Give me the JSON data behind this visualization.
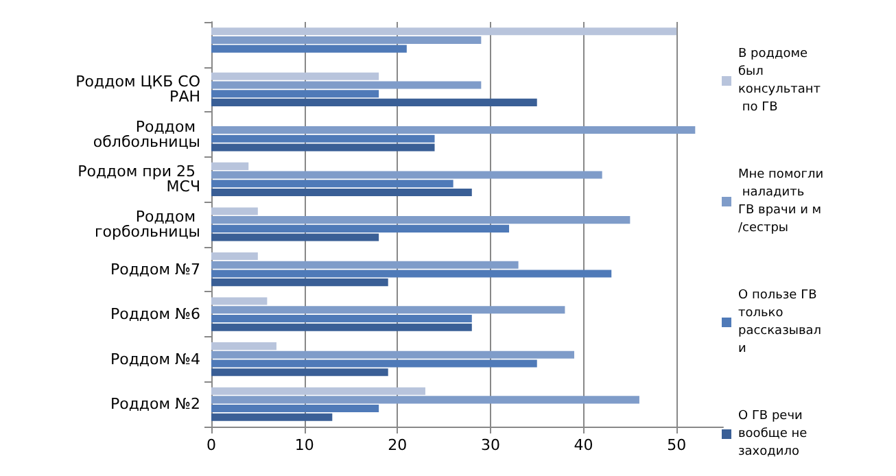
{
  "chart_data": {
    "type": "bar",
    "orientation": "horizontal",
    "categories": [
      null,
      "Роддом ЦКБ СО РАН",
      "Роддом облбольницы",
      "Роддом при 25 МСЧ",
      "Роддом горбольницы",
      "Роддом №7",
      "Роддом №6",
      "Роддом №4",
      "Роддом №2"
    ],
    "series": [
      {
        "name": "В роддоме  был консультант по ГВ",
        "color": "#b8c4dc",
        "values": [
          50,
          18,
          0,
          4,
          5,
          5,
          6,
          7,
          23
        ]
      },
      {
        "name": "Мне помогли наладить ГВ врачи и м/сестры",
        "color": "#7f9cc9",
        "values": [
          29,
          29,
          52,
          42,
          45,
          33,
          38,
          39,
          46
        ]
      },
      {
        "name": "О пользе ГВ только рассказывали",
        "color": "#4f7ab8",
        "values": [
          21,
          18,
          24,
          26,
          32,
          43,
          28,
          35,
          18
        ]
      },
      {
        "name": "О ГВ речи вообще не заходило",
        "color": "#3a5f96",
        "values": [
          0,
          35,
          24,
          28,
          18,
          19,
          28,
          19,
          13
        ]
      }
    ],
    "xlim": [
      0,
      55
    ],
    "xticks": [
      0,
      10,
      20,
      30,
      40,
      50
    ],
    "grid": "x",
    "legend": "right"
  }
}
